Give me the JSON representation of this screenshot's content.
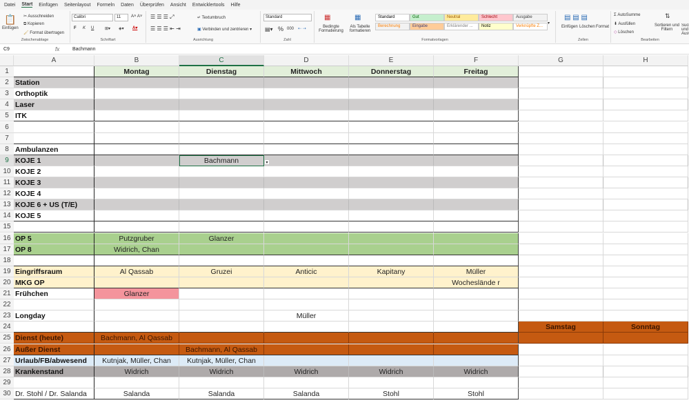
{
  "menu": [
    "Datei",
    "Start",
    "Einfügen",
    "Seitenlayout",
    "Formeln",
    "Daten",
    "Überprüfen",
    "Ansicht",
    "Entwicklertools",
    "Hilfe"
  ],
  "menu_active": "Start",
  "ribbon": {
    "clipboard": {
      "paste": "Einfügen",
      "cut": "Ausschneiden",
      "copy": "Kopieren",
      "format_painter": "Format übertragen",
      "label": "Zwischenablage"
    },
    "font": {
      "name": "Calibri",
      "size": "11",
      "bold": "F",
      "italic": "K",
      "underline": "U",
      "label": "Schriftart"
    },
    "alignment": {
      "wrap": "Textumbruch",
      "merge": "Verbinden und zentrieren",
      "label": "Ausrichtung"
    },
    "number": {
      "format": "Standard",
      "percent": "%",
      "thousands": "000",
      "label": "Zahl"
    },
    "styles": {
      "conditional": "Bedingte Formatierung",
      "as_table": "Als Tabelle formatieren",
      "items": [
        {
          "name": "Standard",
          "bg": "#ffffff",
          "fg": "#000000"
        },
        {
          "name": "Gut",
          "bg": "#c6efce",
          "fg": "#006100"
        },
        {
          "name": "Neutral",
          "bg": "#ffeb9c",
          "fg": "#9c5700"
        },
        {
          "name": "Schlecht",
          "bg": "#ffc7ce",
          "fg": "#9c0006"
        },
        {
          "name": "Ausgabe",
          "bg": "#f2f2f2",
          "fg": "#3f3f3f"
        },
        {
          "name": "Berechnung",
          "bg": "#f2f2f2",
          "fg": "#fa7d00"
        },
        {
          "name": "Eingabe",
          "bg": "#ffcc99",
          "fg": "#3f3f76"
        },
        {
          "name": "Erklärender ...",
          "bg": "#ffffff",
          "fg": "#7f7f7f"
        },
        {
          "name": "Notiz",
          "bg": "#ffffcc",
          "fg": "#000000"
        },
        {
          "name": "Verknüpfte Z...",
          "bg": "#ffffff",
          "fg": "#fa7d00"
        }
      ],
      "label": "Formatvorlagen"
    },
    "cells": {
      "insert": "Einfügen",
      "delete": "Löschen",
      "format": "Format",
      "label": "Zellen"
    },
    "editing": {
      "autosum": "AutoSumme",
      "fill": "Ausfüllen",
      "clear": "Löschen",
      "sort": "Sortieren und Filtern",
      "find": "Suchen und Auswählen",
      "label": "Bearbeiten"
    }
  },
  "formula_bar": {
    "name_box": "C9",
    "fx": "fx",
    "value": "Bachmann"
  },
  "columns": [
    "A",
    "B",
    "C",
    "D",
    "E",
    "F",
    "G",
    "H"
  ],
  "selected_cell": "C9",
  "colors": {
    "header_green": "#e2efda",
    "gray": "#d0cece",
    "op_green": "#a9d08e",
    "yellow": "#fff2cc",
    "pink": "#f4949c",
    "orange": "#c55a11",
    "blue": "#ddebf7",
    "sick_gray": "#aeaaaa"
  },
  "rows": [
    {
      "n": 1,
      "cells": [
        "",
        "Montag",
        "Dienstag",
        "Mittwoch",
        "Donnerstag",
        "Freitag",
        "",
        ""
      ],
      "fill": "header_green"
    },
    {
      "n": 2,
      "cells": [
        "Station",
        "",
        "",
        "",
        "",
        "",
        "",
        ""
      ],
      "fill": "gray"
    },
    {
      "n": 3,
      "cells": [
        "Orthoptik",
        "",
        "",
        "",
        "",
        "",
        "",
        ""
      ]
    },
    {
      "n": 4,
      "cells": [
        "Laser",
        "",
        "",
        "",
        "",
        "",
        "",
        ""
      ],
      "fill": "gray"
    },
    {
      "n": 5,
      "cells": [
        "ITK",
        "",
        "",
        "",
        "",
        "",
        "",
        ""
      ]
    },
    {
      "n": 6,
      "cells": [
        "",
        "",
        "",
        "",
        "",
        "",
        "",
        ""
      ]
    },
    {
      "n": 7,
      "cells": [
        "",
        "",
        "",
        "",
        "",
        "",
        "",
        ""
      ]
    },
    {
      "n": 8,
      "cells": [
        "Ambulanzen",
        "",
        "",
        "",
        "",
        "",
        "",
        ""
      ]
    },
    {
      "n": 9,
      "cells": [
        "KOJE 1",
        "",
        "Bachmann",
        "",
        "",
        "",
        "",
        ""
      ],
      "fill": "gray"
    },
    {
      "n": 10,
      "cells": [
        "KOJE 2",
        "",
        "",
        "",
        "",
        "",
        "",
        ""
      ]
    },
    {
      "n": 11,
      "cells": [
        "KOJE 3",
        "",
        "",
        "",
        "",
        "",
        "",
        ""
      ],
      "fill": "gray"
    },
    {
      "n": 12,
      "cells": [
        "KOJE 4",
        "",
        "",
        "",
        "",
        "",
        "",
        ""
      ]
    },
    {
      "n": 13,
      "cells": [
        "KOJE 6 + US (T/E)",
        "",
        "",
        "",
        "",
        "",
        "",
        ""
      ],
      "fill": "gray"
    },
    {
      "n": 14,
      "cells": [
        "KOJE 5",
        "",
        "",
        "",
        "",
        "",
        "",
        ""
      ]
    },
    {
      "n": 15,
      "cells": [
        "",
        "",
        "",
        "",
        "",
        "",
        "",
        ""
      ]
    },
    {
      "n": 16,
      "cells": [
        "OP 5",
        "Putzgruber",
        "Glanzer",
        "",
        "",
        "",
        "",
        ""
      ],
      "fill": "op_green"
    },
    {
      "n": 17,
      "cells": [
        "OP 8",
        "Widrich, Chan",
        "",
        "",
        "",
        "",
        "",
        ""
      ],
      "fill": "op_green"
    },
    {
      "n": 18,
      "cells": [
        "",
        "",
        "",
        "",
        "",
        "",
        "",
        ""
      ]
    },
    {
      "n": 19,
      "cells": [
        "Eingriffsraum",
        "Al Qassab",
        "Gruzei",
        "Anticic",
        "Kapitany",
        "Müller",
        "",
        ""
      ],
      "fill": "yellow"
    },
    {
      "n": 20,
      "cells": [
        "MKG OP",
        "",
        "",
        "",
        "",
        "Wocheslände r",
        "",
        ""
      ],
      "fill": "yellow"
    },
    {
      "n": 21,
      "cells": [
        "Frühchen",
        "Glanzer",
        "",
        "",
        "",
        "",
        "",
        ""
      ]
    },
    {
      "n": 22,
      "cells": [
        "",
        "",
        "",
        "",
        "",
        "",
        "",
        ""
      ]
    },
    {
      "n": 23,
      "cells": [
        "Longday",
        "",
        "",
        "Müller",
        "",
        "",
        "",
        ""
      ]
    },
    {
      "n": 24,
      "cells": [
        "",
        "",
        "",
        "",
        "",
        "",
        "Samstag",
        "Sonntag"
      ]
    },
    {
      "n": 25,
      "cells": [
        "Dienst (heute)",
        "Bachmann, Al Qassab",
        "",
        "",
        "",
        "",
        "",
        ""
      ],
      "fill": "orange"
    },
    {
      "n": 26,
      "cells": [
        "Außer Dienst",
        "",
        "Bachmann, Al Qassab",
        "",
        "",
        "",
        "",
        ""
      ],
      "fill": "orange"
    },
    {
      "n": 27,
      "cells": [
        "Urlaub/FB/abwesend",
        "Kutnjak, Müller, Chan",
        "Kutnjak, Müller, Chan",
        "",
        "",
        "",
        "",
        ""
      ],
      "fill": "blue"
    },
    {
      "n": 28,
      "cells": [
        "Krankenstand",
        "Widrich",
        "Widrich",
        "Widrich",
        "Widrich",
        "Widrich",
        "",
        ""
      ],
      "fill": "sick_gray"
    },
    {
      "n": 29,
      "cells": [
        "",
        "",
        "",
        "",
        "",
        "",
        "",
        ""
      ]
    },
    {
      "n": 30,
      "cells": [
        "Dr. Stohl / Dr. Salanda",
        "Salanda",
        "Salanda",
        "Salanda",
        "Stohl",
        "Stohl",
        "",
        ""
      ]
    }
  ]
}
